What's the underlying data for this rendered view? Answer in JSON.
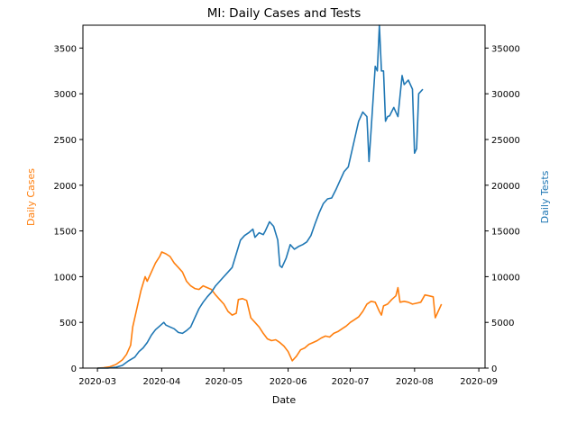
{
  "chart_data": {
    "type": "line",
    "title": "MI: Daily Cases and Tests",
    "xlabel": "Date",
    "ylabel_left": "Daily Cases",
    "ylabel_right": "Daily Tests",
    "x_tick_labels": [
      "2020-03",
      "2020-04",
      "2020-05",
      "2020-06",
      "2020-07",
      "2020-08",
      "2020-09"
    ],
    "x_tick_days": [
      0,
      31,
      61,
      92,
      122,
      153,
      184
    ],
    "xlim_days": [
      -7,
      187
    ],
    "left_axis": {
      "ylim": [
        0,
        3750
      ],
      "ticks": [
        0,
        500,
        1000,
        1500,
        2000,
        2500,
        3000,
        3500
      ],
      "color": "#ff7f0e"
    },
    "right_axis": {
      "ylim": [
        0,
        37500
      ],
      "ticks": [
        0,
        5000,
        10000,
        15000,
        20000,
        25000,
        30000,
        35000
      ],
      "color": "#1f77b4"
    },
    "grid": false,
    "series": [
      {
        "name": "Daily Cases",
        "axis": "left",
        "color": "#ff7f0e",
        "points": [
          [
            0,
            0
          ],
          [
            3,
            5
          ],
          [
            6,
            15
          ],
          [
            9,
            40
          ],
          [
            12,
            90
          ],
          [
            14,
            150
          ],
          [
            16,
            250
          ],
          [
            17,
            450
          ],
          [
            19,
            650
          ],
          [
            21,
            850
          ],
          [
            23,
            1000
          ],
          [
            24,
            950
          ],
          [
            26,
            1050
          ],
          [
            28,
            1150
          ],
          [
            30,
            1220
          ],
          [
            31,
            1270
          ],
          [
            33,
            1250
          ],
          [
            35,
            1220
          ],
          [
            37,
            1150
          ],
          [
            39,
            1100
          ],
          [
            41,
            1050
          ],
          [
            43,
            950
          ],
          [
            45,
            900
          ],
          [
            47,
            870
          ],
          [
            49,
            860
          ],
          [
            51,
            900
          ],
          [
            53,
            880
          ],
          [
            55,
            860
          ],
          [
            57,
            800
          ],
          [
            59,
            750
          ],
          [
            61,
            700
          ],
          [
            63,
            620
          ],
          [
            65,
            580
          ],
          [
            67,
            600
          ],
          [
            68,
            750
          ],
          [
            70,
            760
          ],
          [
            72,
            740
          ],
          [
            74,
            550
          ],
          [
            76,
            500
          ],
          [
            78,
            450
          ],
          [
            80,
            380
          ],
          [
            82,
            320
          ],
          [
            84,
            300
          ],
          [
            86,
            310
          ],
          [
            88,
            280
          ],
          [
            90,
            240
          ],
          [
            92,
            180
          ],
          [
            93,
            130
          ],
          [
            94,
            80
          ],
          [
            96,
            130
          ],
          [
            98,
            200
          ],
          [
            100,
            220
          ],
          [
            102,
            260
          ],
          [
            104,
            280
          ],
          [
            106,
            300
          ],
          [
            108,
            330
          ],
          [
            110,
            350
          ],
          [
            112,
            340
          ],
          [
            114,
            380
          ],
          [
            116,
            400
          ],
          [
            118,
            430
          ],
          [
            120,
            460
          ],
          [
            122,
            500
          ],
          [
            124,
            530
          ],
          [
            126,
            560
          ],
          [
            128,
            620
          ],
          [
            130,
            700
          ],
          [
            132,
            730
          ],
          [
            134,
            720
          ],
          [
            136,
            620
          ],
          [
            137,
            580
          ],
          [
            138,
            680
          ],
          [
            140,
            700
          ],
          [
            142,
            750
          ],
          [
            144,
            790
          ],
          [
            145,
            880
          ],
          [
            146,
            720
          ],
          [
            148,
            730
          ],
          [
            150,
            720
          ],
          [
            152,
            700
          ],
          [
            154,
            710
          ],
          [
            156,
            720
          ],
          [
            158,
            800
          ],
          [
            160,
            790
          ],
          [
            162,
            780
          ],
          [
            163,
            550
          ],
          [
            164,
            600
          ],
          [
            166,
            700
          ]
        ]
      },
      {
        "name": "Daily Tests",
        "axis": "right",
        "color": "#1f77b4",
        "points": [
          [
            0,
            0
          ],
          [
            5,
            0
          ],
          [
            9,
            100
          ],
          [
            12,
            300
          ],
          [
            15,
            800
          ],
          [
            18,
            1200
          ],
          [
            20,
            1800
          ],
          [
            22,
            2200
          ],
          [
            24,
            2800
          ],
          [
            26,
            3600
          ],
          [
            28,
            4200
          ],
          [
            30,
            4600
          ],
          [
            32,
            5000
          ],
          [
            33,
            4700
          ],
          [
            35,
            4500
          ],
          [
            37,
            4300
          ],
          [
            39,
            3900
          ],
          [
            41,
            3800
          ],
          [
            43,
            4100
          ],
          [
            45,
            4500
          ],
          [
            47,
            5500
          ],
          [
            49,
            6500
          ],
          [
            51,
            7200
          ],
          [
            53,
            7800
          ],
          [
            55,
            8300
          ],
          [
            57,
            9000
          ],
          [
            59,
            9500
          ],
          [
            61,
            10000
          ],
          [
            63,
            10500
          ],
          [
            65,
            11000
          ],
          [
            67,
            12500
          ],
          [
            69,
            14000
          ],
          [
            71,
            14500
          ],
          [
            73,
            14800
          ],
          [
            75,
            15200
          ],
          [
            76,
            14300
          ],
          [
            78,
            14800
          ],
          [
            80,
            14600
          ],
          [
            81,
            15000
          ],
          [
            83,
            16000
          ],
          [
            85,
            15500
          ],
          [
            87,
            14000
          ],
          [
            88,
            11200
          ],
          [
            89,
            11000
          ],
          [
            91,
            12000
          ],
          [
            93,
            13500
          ],
          [
            95,
            13000
          ],
          [
            97,
            13300
          ],
          [
            99,
            13500
          ],
          [
            101,
            13800
          ],
          [
            103,
            14500
          ],
          [
            105,
            15800
          ],
          [
            107,
            17000
          ],
          [
            109,
            18000
          ],
          [
            111,
            18500
          ],
          [
            113,
            18600
          ],
          [
            115,
            19500
          ],
          [
            117,
            20500
          ],
          [
            119,
            21500
          ],
          [
            121,
            22000
          ],
          [
            122,
            23000
          ],
          [
            124,
            25000
          ],
          [
            126,
            27000
          ],
          [
            128,
            28000
          ],
          [
            130,
            27500
          ],
          [
            131,
            22600
          ],
          [
            132,
            26000
          ],
          [
            134,
            33000
          ],
          [
            135,
            32500
          ],
          [
            136,
            37500
          ],
          [
            137,
            32500
          ],
          [
            138,
            32500
          ],
          [
            139,
            27000
          ],
          [
            140,
            27500
          ],
          [
            141,
            27600
          ],
          [
            143,
            28500
          ],
          [
            145,
            27500
          ],
          [
            147,
            32000
          ],
          [
            148,
            31000
          ],
          [
            150,
            31500
          ],
          [
            152,
            30500
          ],
          [
            153,
            23500
          ],
          [
            154,
            24000
          ],
          [
            155,
            30000
          ],
          [
            157,
            30500
          ]
        ]
      }
    ]
  }
}
